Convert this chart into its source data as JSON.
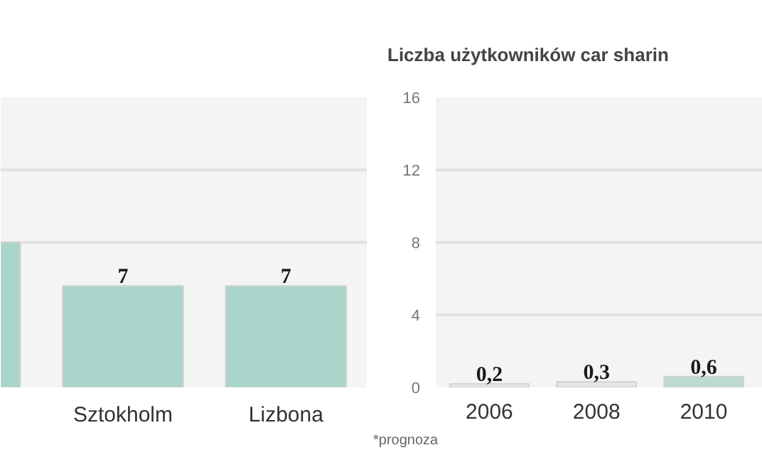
{
  "chart_data": [
    {
      "type": "bar",
      "categories": [
        null,
        "Sztokholm",
        "Lizbona"
      ],
      "values": [
        10,
        7,
        7
      ],
      "colors": [
        "#a9d4c9",
        "#a9d4c9",
        "#a9d4c9"
      ],
      "value_labels": [
        null,
        "7",
        "7"
      ],
      "ylim": [
        0,
        20
      ],
      "yticks": [
        {
          "value": 10,
          "label": null
        },
        {
          "value": 15,
          "label": null
        }
      ],
      "grid": "y",
      "tick_labels": "x"
    },
    {
      "type": "bar",
      "title": "Liczba użytkowników car sharin",
      "categories": [
        "2006",
        "2008",
        "2010"
      ],
      "values": [
        0.2,
        0.3,
        0.6
      ],
      "colors": [
        "#e4e6e5",
        "#e4e6e5",
        "#bcdad2"
      ],
      "value_labels": [
        "0,2",
        "0,3",
        "0,6"
      ],
      "ylim": [
        0,
        16
      ],
      "yticks": [
        0,
        4,
        8,
        12,
        16
      ],
      "grid": "y",
      "annotations": [
        "*prognoza"
      ]
    }
  ]
}
